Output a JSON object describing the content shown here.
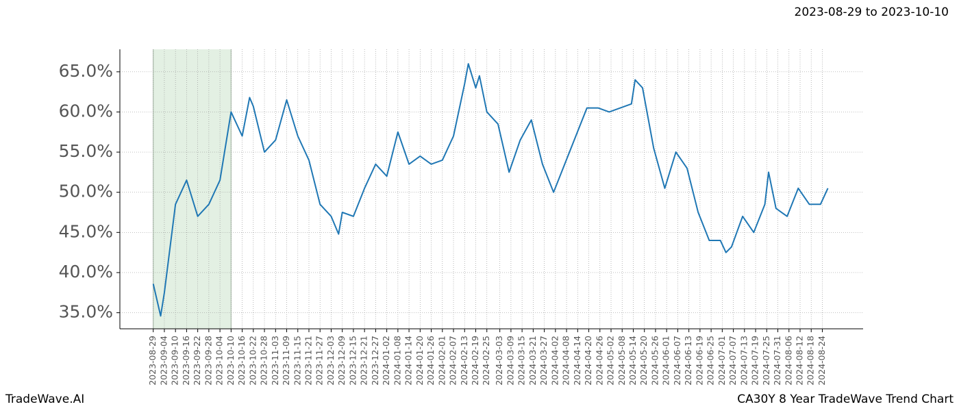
{
  "chart_data": {
    "type": "line",
    "title": "2023-08-29 to 2023-10-10",
    "footer_left": "TradeWave.AI",
    "footer_right": "CA30Y 8 Year TradeWave Trend Chart",
    "highlight": [
      "2023-08-29",
      "2023-10-10"
    ],
    "highlight_color": "#e3f0e3",
    "grid": true,
    "xlim": [
      "2023-08-11",
      "2024-09-15"
    ],
    "ylim": [
      33.0,
      67.8
    ],
    "yticks": [
      {
        "value": 35,
        "label": "35.0%"
      },
      {
        "value": 40,
        "label": "40.0%"
      },
      {
        "value": 45,
        "label": "45.0%"
      },
      {
        "value": 50,
        "label": "50.0%"
      },
      {
        "value": 55,
        "label": "55.0%"
      },
      {
        "value": 60,
        "label": "60.0%"
      },
      {
        "value": 65,
        "label": "65.0%"
      }
    ],
    "xticks": [
      "2023-08-29",
      "2023-09-04",
      "2023-09-10",
      "2023-09-16",
      "2023-09-22",
      "2023-09-28",
      "2023-10-04",
      "2023-10-10",
      "2023-10-16",
      "2023-10-22",
      "2023-10-28",
      "2023-11-03",
      "2023-11-09",
      "2023-11-15",
      "2023-11-21",
      "2023-11-27",
      "2023-12-03",
      "2023-12-09",
      "2023-12-15",
      "2023-12-21",
      "2023-12-27",
      "2024-01-02",
      "2024-01-08",
      "2024-01-14",
      "2024-01-20",
      "2024-01-26",
      "2024-02-01",
      "2024-02-07",
      "2024-02-13",
      "2024-02-19",
      "2024-02-25",
      "2024-03-03",
      "2024-03-09",
      "2024-03-15",
      "2024-03-21",
      "2024-03-27",
      "2024-04-02",
      "2024-04-08",
      "2024-04-14",
      "2024-04-20",
      "2024-04-26",
      "2024-05-02",
      "2024-05-08",
      "2024-05-14",
      "2024-05-20",
      "2024-05-26",
      "2024-06-01",
      "2024-06-07",
      "2024-06-13",
      "2024-06-19",
      "2024-06-25",
      "2024-07-01",
      "2024-07-07",
      "2024-07-13",
      "2024-07-19",
      "2024-07-25",
      "2024-07-31",
      "2024-08-06",
      "2024-08-12",
      "2024-08-18",
      "2024-08-24"
    ],
    "x": [
      "2023-08-29",
      "2023-09-02",
      "2023-09-04",
      "2023-09-10",
      "2023-09-16",
      "2023-09-22",
      "2023-09-28",
      "2023-10-04",
      "2023-10-10",
      "2023-10-16",
      "2023-10-20",
      "2023-10-22",
      "2023-10-28",
      "2023-11-03",
      "2023-11-09",
      "2023-11-15",
      "2023-11-21",
      "2023-11-27",
      "2023-12-03",
      "2023-12-07",
      "2023-12-09",
      "2023-12-15",
      "2023-12-21",
      "2023-12-27",
      "2024-01-02",
      "2024-01-08",
      "2024-01-14",
      "2024-01-20",
      "2024-01-26",
      "2024-02-01",
      "2024-02-07",
      "2024-02-13",
      "2024-02-15",
      "2024-02-19",
      "2024-02-21",
      "2024-02-25",
      "2024-03-02",
      "2024-03-08",
      "2024-03-14",
      "2024-03-20",
      "2024-03-26",
      "2024-04-01",
      "2024-04-07",
      "2024-04-13",
      "2024-04-19",
      "2024-04-25",
      "2024-05-01",
      "2024-05-07",
      "2024-05-13",
      "2024-05-15",
      "2024-05-19",
      "2024-05-25",
      "2024-05-31",
      "2024-06-06",
      "2024-06-12",
      "2024-06-18",
      "2024-06-24",
      "2024-06-30",
      "2024-07-03",
      "2024-07-06",
      "2024-07-12",
      "2024-07-18",
      "2024-07-24",
      "2024-07-26",
      "2024-07-30",
      "2024-08-05",
      "2024-08-11",
      "2024-08-17",
      "2024-08-23",
      "2024-08-27"
    ],
    "series": [
      {
        "color": "#1f77b4",
        "values": [
          38.6,
          34.6,
          37.5,
          48.5,
          51.5,
          47.0,
          48.5,
          51.5,
          60.0,
          57.0,
          61.8,
          60.7,
          55.0,
          56.5,
          61.5,
          57.0,
          54.0,
          48.5,
          47.0,
          44.8,
          47.5,
          47.0,
          50.5,
          53.5,
          52.0,
          57.5,
          53.5,
          54.5,
          53.5,
          54.0,
          57.0,
          63.5,
          66.0,
          63.0,
          64.5,
          60.0,
          58.5,
          52.5,
          56.5,
          59.0,
          53.5,
          50.0,
          53.5,
          57.0,
          60.5,
          60.5,
          60.0,
          60.5,
          61.0,
          64.0,
          63.0,
          55.5,
          50.5,
          55.0,
          53.0,
          47.5,
          44.0,
          44.0,
          42.5,
          43.2,
          47.0,
          45.0,
          48.5,
          52.5,
          48.0,
          47.0,
          50.5,
          48.5,
          48.5,
          50.5
        ]
      }
    ]
  }
}
